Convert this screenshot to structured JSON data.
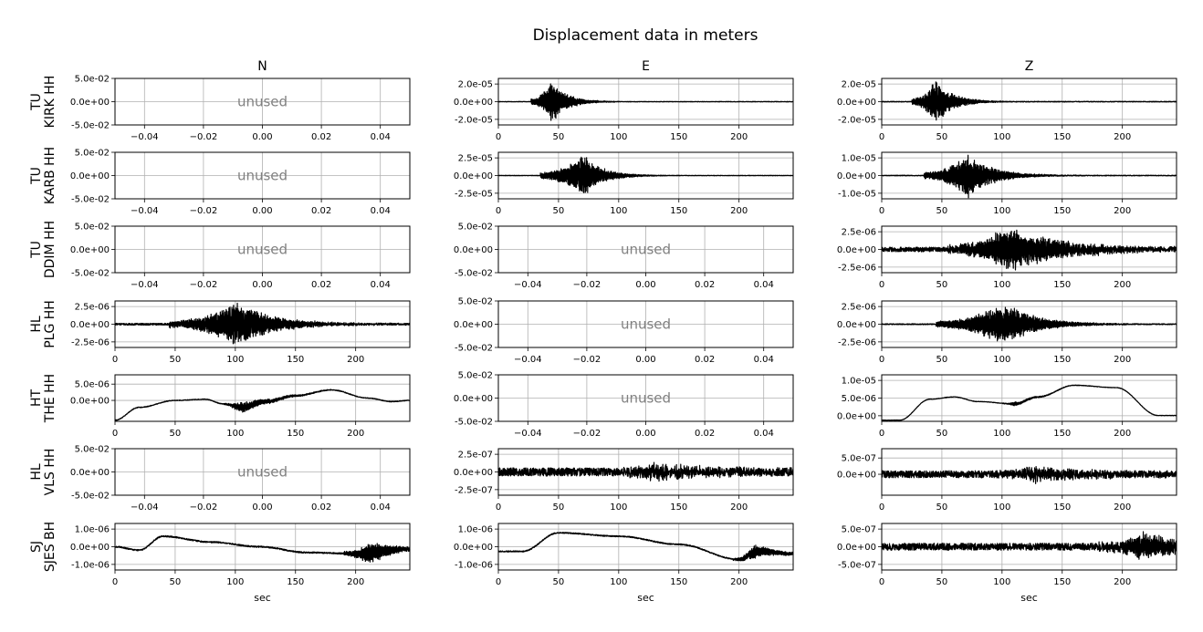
{
  "title": "Displacement data in meters",
  "columns": [
    "N",
    "E",
    "Z"
  ],
  "rows": [
    {
      "line1": "TU",
      "line2": "KIRK HH"
    },
    {
      "line1": "TU",
      "line2": "KARB HH"
    },
    {
      "line1": "TU",
      "line2": "DDIM HH"
    },
    {
      "line1": "HL",
      "line2": "PLG HH"
    },
    {
      "line1": "HT",
      "line2": "THE HH"
    },
    {
      "line1": "HL",
      "line2": "VLS HH"
    },
    {
      "line1": "SJ",
      "line2": "SJES BH"
    }
  ],
  "xlabel": "sec",
  "unused_label": "unused",
  "colors": {
    "trace": "#000000",
    "grid": "#b0b0b0",
    "unused_text": "#808080"
  },
  "chart_data": {
    "type": "line",
    "grid": true,
    "panels": [
      {
        "row": 0,
        "col": 0,
        "unused": true,
        "xlim": [
          -0.05,
          0.05
        ],
        "ylim": [
          -0.05,
          0.05
        ],
        "xticks": [
          "−0.04",
          "−0.02",
          "0.00",
          "0.02",
          "0.04"
        ],
        "yticks": [
          "5.0e-02",
          "0.0e+00",
          "-5.0e-02"
        ]
      },
      {
        "row": 0,
        "col": 1,
        "unused": false,
        "xlim": [
          0,
          245
        ],
        "xticks": [
          "0",
          "50",
          "100",
          "150",
          "200"
        ],
        "yticks": [
          "2.0e-05",
          "0.0e+00",
          "-2.0e-05"
        ],
        "onset": 27,
        "peak_time": 45,
        "peak_amp": 0.95,
        "decay": 12,
        "noise": 0.02,
        "drift": 0
      },
      {
        "row": 0,
        "col": 2,
        "unused": false,
        "xlim": [
          0,
          245
        ],
        "xticks": [
          "0",
          "50",
          "100",
          "150",
          "200"
        ],
        "yticks": [
          "2.0e-05",
          "0.0e+00",
          "-2.0e-05"
        ],
        "onset": 25,
        "peak_time": 45,
        "peak_amp": 0.95,
        "decay": 14,
        "noise": 0.03,
        "drift": 0
      },
      {
        "row": 1,
        "col": 0,
        "unused": true,
        "xlim": [
          -0.05,
          0.05
        ],
        "ylim": [
          -0.05,
          0.05
        ],
        "xticks": [
          "−0.04",
          "−0.02",
          "0.00",
          "0.02",
          "0.04"
        ],
        "yticks": [
          "5.0e-02",
          "0.0e+00",
          "-5.0e-02"
        ]
      },
      {
        "row": 1,
        "col": 1,
        "unused": false,
        "xlim": [
          0,
          245
        ],
        "xticks": [
          "0",
          "50",
          "100",
          "150",
          "200"
        ],
        "yticks": [
          "2.5e-05",
          "0.0e+00",
          "-2.5e-05"
        ],
        "onset": 35,
        "peak_time": 71,
        "peak_amp": 0.95,
        "decay": 15,
        "noise": 0.02,
        "drift": 0
      },
      {
        "row": 1,
        "col": 2,
        "unused": false,
        "xlim": [
          0,
          245
        ],
        "xticks": [
          "0",
          "50",
          "100",
          "150",
          "200"
        ],
        "yticks": [
          "1.0e-05",
          "0.0e+00",
          "-1.0e-05"
        ],
        "onset": 35,
        "peak_time": 72,
        "peak_amp": 0.95,
        "decay": 20,
        "noise": 0.03,
        "drift": 0
      },
      {
        "row": 2,
        "col": 0,
        "unused": true,
        "xlim": [
          -0.05,
          0.05
        ],
        "ylim": [
          -0.05,
          0.05
        ],
        "xticks": [
          "−0.04",
          "−0.02",
          "0.00",
          "0.02",
          "0.04"
        ],
        "yticks": [
          "5.0e-02",
          "0.0e+00",
          "-5.0e-02"
        ]
      },
      {
        "row": 2,
        "col": 1,
        "unused": true,
        "xlim": [
          -0.05,
          0.05
        ],
        "ylim": [
          -0.05,
          0.05
        ],
        "xticks": [
          "−0.04",
          "−0.02",
          "0.00",
          "0.02",
          "0.04"
        ],
        "yticks": [
          "5.0e-02",
          "0.0e+00",
          "-5.0e-02"
        ]
      },
      {
        "row": 2,
        "col": 2,
        "unused": false,
        "xlim": [
          0,
          245
        ],
        "xticks": [
          "0",
          "50",
          "100",
          "150",
          "200"
        ],
        "yticks": [
          "2.5e-06",
          "0.0e+00",
          "-2.5e-06"
        ],
        "onset": 55,
        "peak_time": 105,
        "peak_amp": 0.95,
        "decay": 45,
        "noise": 0.2,
        "drift": 0
      },
      {
        "row": 3,
        "col": 0,
        "unused": false,
        "xlim": [
          0,
          245
        ],
        "xticks": [
          "0",
          "50",
          "100",
          "150",
          "200"
        ],
        "yticks": [
          "2.5e-06",
          "0.0e+00",
          "-2.5e-06"
        ],
        "onset": 45,
        "peak_time": 102,
        "peak_amp": 0.95,
        "decay": 30,
        "noise": 0.08,
        "drift": 0
      },
      {
        "row": 3,
        "col": 1,
        "unused": true,
        "xlim": [
          -0.05,
          0.05
        ],
        "ylim": [
          -0.05,
          0.05
        ],
        "xticks": [
          "−0.04",
          "−0.02",
          "0.00",
          "0.02",
          "0.04"
        ],
        "yticks": [
          "5.0e-02",
          "0.0e+00",
          "-5.0e-02"
        ]
      },
      {
        "row": 3,
        "col": 2,
        "unused": false,
        "xlim": [
          0,
          245
        ],
        "xticks": [
          "0",
          "50",
          "100",
          "150",
          "200"
        ],
        "yticks": [
          "2.5e-06",
          "0.0e+00",
          "-2.5e-06"
        ],
        "onset": 45,
        "peak_time": 103,
        "peak_amp": 0.95,
        "decay": 25,
        "noise": 0.04,
        "drift": 0
      },
      {
        "row": 4,
        "col": 0,
        "unused": false,
        "xlim": [
          0,
          245
        ],
        "xticks": [
          "0",
          "50",
          "100",
          "150",
          "200"
        ],
        "yticks": [
          "5.0e-06",
          "0.0e+00"
        ],
        "onset": 90,
        "peak_time": 105,
        "peak_amp": 0.25,
        "decay": 25,
        "noise": 0.03,
        "drift": 1,
        "drift_points": [
          [
            0,
            -0.85
          ],
          [
            20,
            -0.3
          ],
          [
            50,
            0.0
          ],
          [
            75,
            0.05
          ],
          [
            90,
            -0.15
          ],
          [
            105,
            -0.3
          ],
          [
            125,
            -0.05
          ],
          [
            150,
            0.2
          ],
          [
            180,
            0.45
          ],
          [
            210,
            0.1
          ],
          [
            230,
            -0.05
          ],
          [
            245,
            0.0
          ]
        ]
      },
      {
        "row": 4,
        "col": 1,
        "unused": true,
        "xlim": [
          -0.05,
          0.05
        ],
        "ylim": [
          -0.05,
          0.05
        ],
        "xticks": [
          "−0.04",
          "−0.02",
          "0.00",
          "0.02",
          "0.04"
        ],
        "yticks": [
          "5.0e-02",
          "0.0e+00",
          "-5.0e-02"
        ]
      },
      {
        "row": 4,
        "col": 2,
        "unused": false,
        "xlim": [
          0,
          245
        ],
        "xticks": [
          "0",
          "50",
          "100",
          "150",
          "200"
        ],
        "yticks": [
          "1.0e-05",
          "5.0e-06",
          "0.0e+00"
        ],
        "onset": 100,
        "peak_time": 110,
        "peak_amp": 0.08,
        "decay": 20,
        "noise": 0.02,
        "drift": 1,
        "drift_points": [
          [
            0,
            -0.95
          ],
          [
            15,
            -0.95
          ],
          [
            40,
            -0.05
          ],
          [
            60,
            0.05
          ],
          [
            80,
            -0.15
          ],
          [
            110,
            -0.25
          ],
          [
            130,
            0.05
          ],
          [
            160,
            0.55
          ],
          [
            195,
            0.45
          ],
          [
            230,
            -0.75
          ],
          [
            245,
            -0.75
          ]
        ]
      },
      {
        "row": 5,
        "col": 0,
        "unused": true,
        "xlim": [
          -0.05,
          0.05
        ],
        "ylim": [
          -0.05,
          0.05
        ],
        "xticks": [
          "−0.04",
          "−0.02",
          "0.00",
          "0.02",
          "0.04"
        ],
        "yticks": [
          "5.0e-02",
          "0.0e+00",
          "-5.0e-02"
        ]
      },
      {
        "row": 5,
        "col": 1,
        "unused": false,
        "xlim": [
          0,
          245
        ],
        "xticks": [
          "0",
          "50",
          "100",
          "150",
          "200"
        ],
        "yticks": [
          "2.5e-07",
          "0.0e+00",
          "-2.5e-07"
        ],
        "onset": 100,
        "peak_time": 130,
        "peak_amp": 0.35,
        "decay": 40,
        "noise": 0.35,
        "drift": 0
      },
      {
        "row": 5,
        "col": 2,
        "unused": false,
        "xlim": [
          0,
          245
        ],
        "xticks": [
          "0",
          "50",
          "100",
          "150",
          "200"
        ],
        "yticks": [
          "5.0e-07",
          "0.0e+00"
        ],
        "onset": 95,
        "peak_time": 125,
        "peak_amp": 0.3,
        "decay": 40,
        "noise": 0.3,
        "drift": 0
      },
      {
        "row": 6,
        "col": 0,
        "unused": false,
        "xlim": [
          0,
          245
        ],
        "xticks": [
          "0",
          "50",
          "100",
          "150",
          "200"
        ],
        "yticks": [
          "1.0e-06",
          "0.0e+00",
          "-1.0e-06"
        ],
        "onset": 190,
        "peak_time": 212,
        "peak_amp": 0.5,
        "decay": 20,
        "noise": 0.06,
        "drift": 1,
        "drift_points": [
          [
            0,
            0.0
          ],
          [
            20,
            -0.15
          ],
          [
            40,
            0.45
          ],
          [
            80,
            0.2
          ],
          [
            120,
            0.0
          ],
          [
            160,
            -0.25
          ],
          [
            200,
            -0.3
          ],
          [
            245,
            -0.1
          ]
        ]
      },
      {
        "row": 6,
        "col": 1,
        "unused": false,
        "xlim": [
          0,
          245
        ],
        "xticks": [
          "0",
          "50",
          "100",
          "150",
          "200"
        ],
        "yticks": [
          "1.0e-06",
          "0.0e+00",
          "-1.0e-06"
        ],
        "onset": 195,
        "peak_time": 212,
        "peak_amp": 0.3,
        "decay": 20,
        "noise": 0.05,
        "drift": 1,
        "drift_points": [
          [
            0,
            -0.2
          ],
          [
            20,
            -0.2
          ],
          [
            50,
            0.6
          ],
          [
            100,
            0.45
          ],
          [
            150,
            0.1
          ],
          [
            200,
            -0.55
          ],
          [
            215,
            -0.2
          ],
          [
            245,
            -0.3
          ]
        ]
      },
      {
        "row": 6,
        "col": 2,
        "unused": false,
        "xlim": [
          0,
          245
        ],
        "xticks": [
          "0",
          "50",
          "100",
          "150",
          "200"
        ],
        "yticks": [
          "5.0e-07",
          "0.0e+00",
          "-5.0e-07"
        ],
        "onset": 180,
        "peak_time": 220,
        "peak_amp": 0.6,
        "decay": 30,
        "noise": 0.3,
        "drift": 0
      }
    ]
  }
}
